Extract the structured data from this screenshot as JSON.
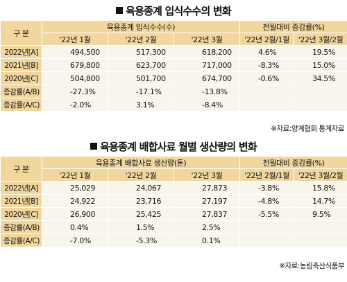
{
  "table1": {
    "title": "육용종계 입식수수의 변화",
    "gubun": "구 분",
    "group1": "육용종계 입식수수(수)",
    "group2": "전월대비 증감률(%)",
    "subheaders": [
      "'22년 1월",
      "'22년 2월",
      "'22년 3월",
      "'22년 2월/1월",
      "'22년 3월/2월"
    ],
    "rows": [
      {
        "label": "2022년[A]",
        "cells": [
          "494,500",
          "517,300",
          "618,200",
          "4.6%",
          "19.5%"
        ]
      },
      {
        "label": "2021년[B]",
        "cells": [
          "679,800",
          "623,700",
          "717,000",
          "-8.3%",
          "15.0%"
        ]
      },
      {
        "label": "2020년[C]",
        "cells": [
          "504,800",
          "501,700",
          "674,700",
          "-0.6%",
          "34.5%"
        ]
      },
      {
        "label": "증감률(A/B)",
        "cells": [
          "-27.3%",
          "-17.1%",
          "-13.8%",
          "",
          ""
        ]
      },
      {
        "label": "증감률(A/C)",
        "cells": [
          "-2.0%",
          "3.1%",
          "-8.4%",
          "",
          ""
        ]
      }
    ],
    "source": "자료:양계협회 통계자료"
  },
  "table2": {
    "title": "육용종계 배합사료 월별 생산량의 변화",
    "gubun": "구 분",
    "group1": "육용종계 배합사료 생산량(톤)",
    "group2": "전월대비 증감률(%)",
    "subheaders": [
      "'22년 1월",
      "'22년 2월",
      "'22년 3월",
      "'22년 2월/1월",
      "'22년 3월/2월"
    ],
    "rows": [
      {
        "label": "2022년[A]",
        "cells": [
          "25,029",
          "24,067",
          "27,873",
          "-3.8%",
          "15.8%"
        ]
      },
      {
        "label": "2021년[B]",
        "cells": [
          "24,922",
          "23,716",
          "27,197",
          "-4.8%",
          "14.7%"
        ]
      },
      {
        "label": "2020년[C]",
        "cells": [
          "26,900",
          "25,425",
          "27,837",
          "-5.5%",
          "9.5%"
        ]
      },
      {
        "label": "증감률(A/B)",
        "cells": [
          "0.4%",
          "1.5%",
          "2.5%",
          "",
          ""
        ]
      },
      {
        "label": "증감률(A/C)",
        "cells": [
          "-7.0%",
          "-5.3%",
          "0.1%",
          "",
          ""
        ]
      }
    ],
    "source": "자료:농림축산식품부"
  }
}
